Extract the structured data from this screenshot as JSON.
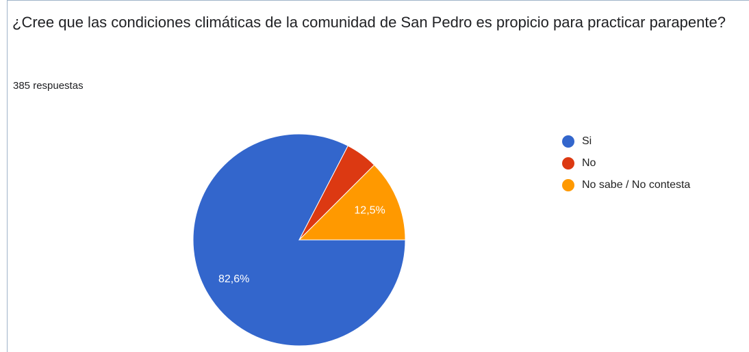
{
  "chart_data": {
    "type": "pie",
    "title": "¿Cree que las condiciones climáticas de la comunidad de San Pedro es propicio para practicar parapente?",
    "subtitle": "385 respuestas",
    "categories": [
      "Si",
      "No",
      "No sabe / No contesta"
    ],
    "values": [
      82.6,
      4.9,
      12.5
    ],
    "value_labels": [
      "82,6%",
      null,
      "12,5%"
    ],
    "colors": [
      "#3366cc",
      "#dc3912",
      "#ff9900"
    ],
    "legend": "right"
  }
}
